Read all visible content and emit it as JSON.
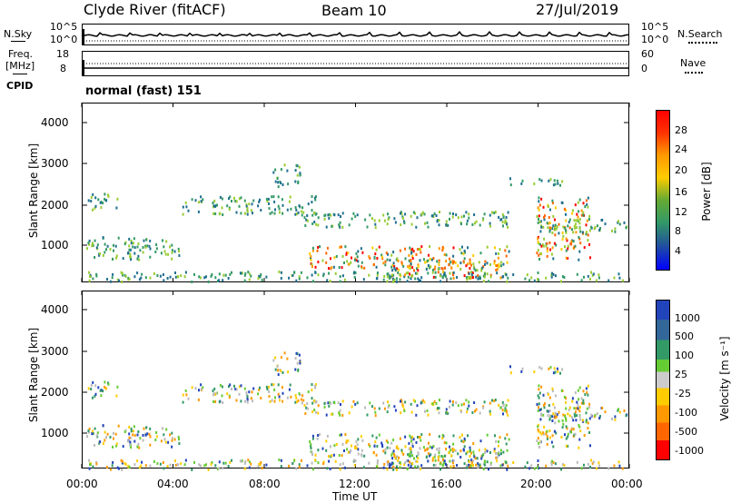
{
  "header": {
    "station": "Clyde River (fitACF)",
    "beam": "Beam 10",
    "date": "27/Jul/2019"
  },
  "noise_panel": {
    "left_label": "N.Sky",
    "left_ticks": [
      "10^5",
      "10^0"
    ],
    "right_label": "N.Search",
    "right_ticks": [
      "10^5",
      "10^0"
    ]
  },
  "freq_panel": {
    "left_label_1": "Freq.",
    "left_label_2": "[MHz]",
    "left_ticks": [
      "18",
      "8"
    ],
    "right_label": "Nave",
    "right_ticks": [
      "60",
      "0"
    ]
  },
  "cpid_panel": {
    "label": "CPID",
    "value": "normal (fast) 151"
  },
  "colors": {
    "scale": [
      "#ff0000",
      "#ff6600",
      "#ff9900",
      "#ffcc00",
      "#99cc33",
      "#339966",
      "#1f6f8f",
      "#2244cc",
      "#0000ff"
    ]
  },
  "chart_data": [
    {
      "type": "heatmap",
      "title": "Power",
      "ylabel": "Slant Range [km]",
      "xlabel": "",
      "y_ticks": [
        "4000",
        "3000",
        "2000",
        "1000"
      ],
      "ylim": [
        180,
        4500
      ],
      "colorbar_label": "Power [dB]",
      "colorbar_ticks": [
        "28",
        "24",
        "20",
        "16",
        "12",
        "8",
        "4"
      ],
      "colorbar_range": [
        0,
        32
      ]
    },
    {
      "type": "heatmap",
      "title": "Velocity",
      "ylabel": "Slant Range [km]",
      "xlabel": "Time UT",
      "x_ticks": [
        "00:00",
        "04:00",
        "08:00",
        "12:00",
        "16:00",
        "20:00",
        "00:00"
      ],
      "y_ticks": [
        "4000",
        "3000",
        "2000",
        "1000"
      ],
      "ylim": [
        180,
        4500
      ],
      "colorbar_label": "Velocity [m s⁻¹]",
      "colorbar_ticks": [
        "1000",
        "500",
        "100",
        "25",
        "-25",
        "-100",
        "-500",
        "-1000"
      ]
    }
  ]
}
